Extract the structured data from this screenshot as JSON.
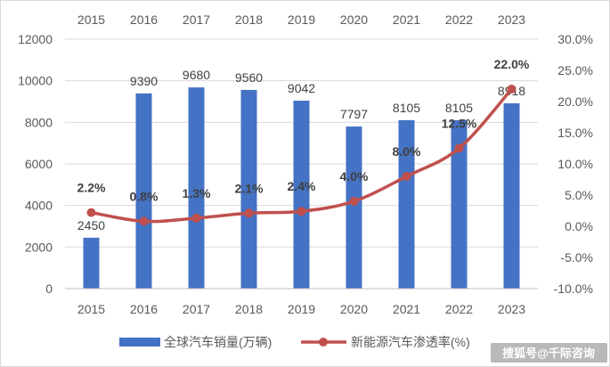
{
  "chart_data": {
    "type": "bar+line",
    "categories": [
      "2015",
      "2016",
      "2017",
      "2018",
      "2019",
      "2020",
      "2021",
      "2022",
      "2023"
    ],
    "series": [
      {
        "name": "全球汽车销量(万辆)",
        "type": "bar",
        "axis": "left",
        "values": [
          2450,
          9390,
          9680,
          9560,
          9042,
          7797,
          8105,
          8105,
          8918
        ],
        "labels": [
          "2450",
          "9390",
          "9680",
          "9560",
          "9042",
          "7797",
          "8105",
          "8105",
          "8918"
        ],
        "color": "#4472c4"
      },
      {
        "name": "新能源汽车渗透率(%)",
        "type": "line",
        "axis": "right",
        "values": [
          2.2,
          0.8,
          1.3,
          2.1,
          2.4,
          4.0,
          8.0,
          12.5,
          22.0
        ],
        "labels": [
          "2.2%",
          "0.8%",
          "1.3%",
          "2.1%",
          "2.4%",
          "4.0%",
          "8.0%",
          "12.5%",
          "22.0%"
        ],
        "color": "#c0504d"
      }
    ],
    "left_axis": {
      "ylim": [
        0,
        12000
      ],
      "ticks": [
        "0",
        "2000",
        "4000",
        "6000",
        "8000",
        "10000",
        "12000"
      ]
    },
    "right_axis": {
      "ylim": [
        -10,
        30
      ],
      "ticks": [
        "-10.0%",
        "-5.0%",
        "0.0%",
        "5.0%",
        "10.0%",
        "15.0%",
        "20.0%",
        "25.0%",
        "30.0%"
      ]
    },
    "top_labels": [
      "2015",
      "2016",
      "2017",
      "2018",
      "2019",
      "2020",
      "2021",
      "2022",
      "2023"
    ],
    "legend_position": "bottom"
  },
  "watermark": "搜狐号@千际咨询"
}
